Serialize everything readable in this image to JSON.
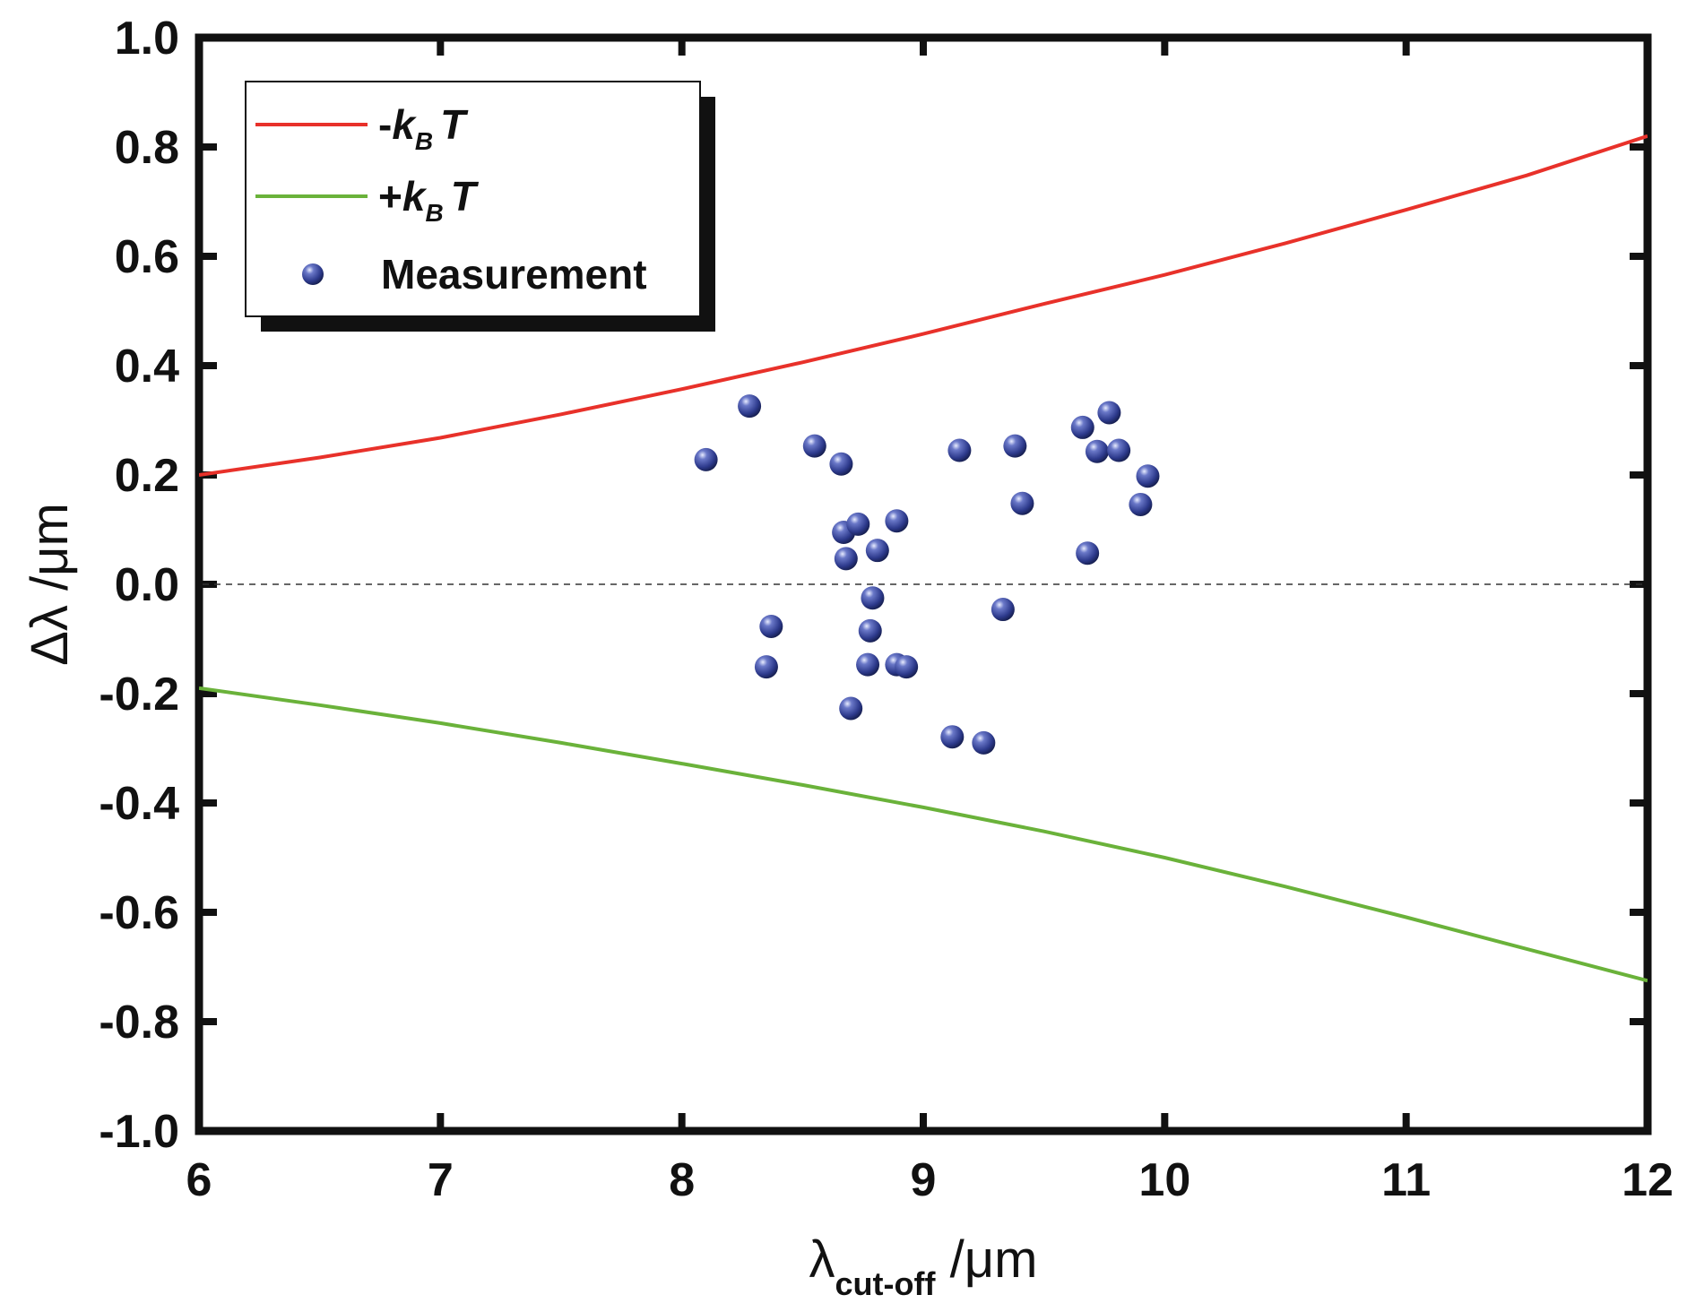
{
  "chart_data": {
    "type": "scatter",
    "xlim": [
      6,
      12
    ],
    "ylim": [
      -1.0,
      1.0
    ],
    "xticks": [
      "6",
      "7",
      "8",
      "9",
      "10",
      "11",
      "12"
    ],
    "yticks": [
      "1.0",
      "0.8",
      "0.6",
      "0.4",
      "0.2",
      "0.0",
      "-0.2",
      "-0.4",
      "-0.6",
      "-0.8",
      "-1.0"
    ],
    "xlabel": {
      "main": "λ",
      "sub": "cut-off",
      "unit": " /μm"
    },
    "ylabel": "Δλ /μm",
    "zero_line": 0.0,
    "legend_position": "top-left",
    "colors": {
      "minus_kbt": "#e8312a",
      "plus_kbt": "#6ab23a",
      "measurement": "#2d3a8c",
      "axis": "#111111",
      "zero_line": "#333333"
    },
    "series": [
      {
        "name": "-kBT",
        "legend": {
          "sign": "-",
          "k": "k",
          "sub": "B",
          "T": "T"
        },
        "kind": "line",
        "x": [
          6.0,
          6.5,
          7.0,
          7.5,
          8.0,
          8.5,
          9.0,
          9.5,
          10.0,
          10.5,
          11.0,
          11.5,
          12.0
        ],
        "y": [
          0.2,
          0.232,
          0.268,
          0.311,
          0.357,
          0.406,
          0.458,
          0.513,
          0.566,
          0.624,
          0.685,
          0.748,
          0.82
        ]
      },
      {
        "name": "+kBT",
        "legend": {
          "sign": "+",
          "k": "k",
          "sub": "B",
          "T": "T"
        },
        "kind": "line",
        "x": [
          6.0,
          6.5,
          7.0,
          7.5,
          8.0,
          8.5,
          9.0,
          9.5,
          10.0,
          10.5,
          11.0,
          11.5,
          12.0
        ],
        "y": [
          -0.19,
          -0.221,
          -0.254,
          -0.29,
          -0.328,
          -0.367,
          -0.408,
          -0.452,
          -0.5,
          -0.553,
          -0.609,
          -0.667,
          -0.725
        ]
      },
      {
        "name": "Measurement",
        "legend": {
          "label": "Measurement"
        },
        "kind": "scatter",
        "points": [
          [
            8.1,
            0.228
          ],
          [
            8.28,
            0.326
          ],
          [
            8.55,
            0.253
          ],
          [
            8.66,
            0.22
          ],
          [
            8.67,
            0.095
          ],
          [
            8.73,
            0.11
          ],
          [
            8.89,
            0.116
          ],
          [
            8.68,
            0.047
          ],
          [
            8.81,
            0.062
          ],
          [
            8.79,
            -0.025
          ],
          [
            8.37,
            -0.077
          ],
          [
            8.78,
            -0.085
          ],
          [
            8.35,
            -0.151
          ],
          [
            8.77,
            -0.147
          ],
          [
            8.89,
            -0.147
          ],
          [
            8.93,
            -0.151
          ],
          [
            8.7,
            -0.227
          ],
          [
            9.12,
            -0.279
          ],
          [
            9.25,
            -0.29
          ],
          [
            9.33,
            -0.046
          ],
          [
            9.15,
            0.245
          ],
          [
            9.38,
            0.253
          ],
          [
            9.41,
            0.148
          ],
          [
            9.66,
            0.287
          ],
          [
            9.77,
            0.314
          ],
          [
            9.72,
            0.243
          ],
          [
            9.81,
            0.245
          ],
          [
            9.93,
            0.198
          ],
          [
            9.9,
            0.146
          ],
          [
            9.68,
            0.057
          ]
        ]
      }
    ]
  }
}
